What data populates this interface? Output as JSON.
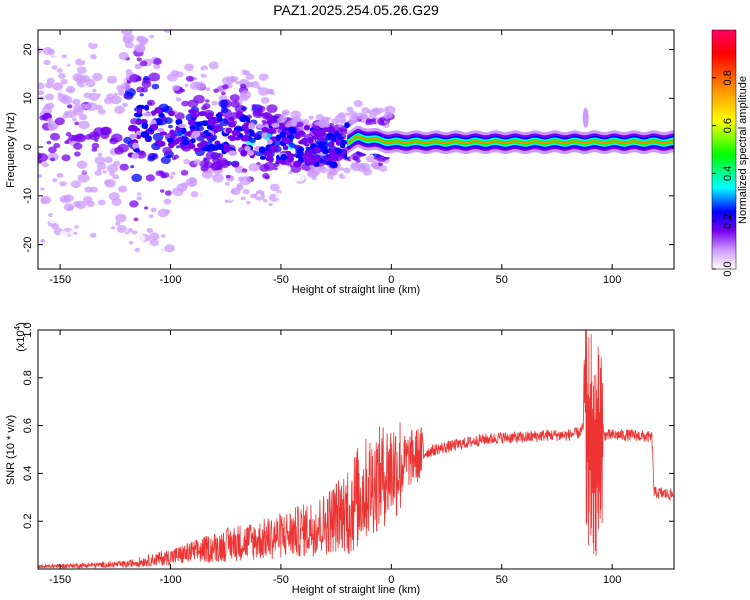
{
  "title": "PAZ1.2025.254.05.26.G29",
  "chart_data": [
    {
      "type": "heatmap",
      "title": "PAZ1.2025.254.05.26.G29",
      "xlabel": "Height of straight line (km)",
      "ylabel": "Frequency (Hz)",
      "xlim": [
        -160,
        128
      ],
      "ylim": [
        -25,
        24
      ],
      "xticks": [
        -150,
        -100,
        -50,
        0,
        50,
        100
      ],
      "yticks": [
        -20,
        -10,
        0,
        10,
        20
      ],
      "colorbar": {
        "label": "Normalized spectral amplitude",
        "range": [
          0,
          1
        ],
        "ticks": [
          0.0,
          0.2,
          0.4,
          0.6,
          0.8
        ],
        "colors": [
          "#ffffff",
          "#cc99ff",
          "#7700ee",
          "#0000ff",
          "#00ffff",
          "#00ff00",
          "#ffff00",
          "#ff8800",
          "#ff0000",
          "#ff0066"
        ]
      },
      "ridge": [
        {
          "x": -115,
          "f": 5
        },
        {
          "x": -100,
          "f": 4
        },
        {
          "x": -80,
          "f": 3
        },
        {
          "x": -60,
          "f": 2
        },
        {
          "x": -40,
          "f": 0
        },
        {
          "x": -25,
          "f": 0
        },
        {
          "x": -15,
          "f": 2
        },
        {
          "x": 0,
          "f": 1
        },
        {
          "x": 50,
          "f": 1
        },
        {
          "x": 87,
          "f": 1
        },
        {
          "x": 128,
          "f": 1
        }
      ]
    },
    {
      "type": "line",
      "xlabel": "Height of straight line (km)",
      "ylabel": "SNR (10 * v/v)",
      "yscale_label": "(x10",
      "yscale_exp": "4",
      "yscale_close": ")",
      "xlim": [
        -160,
        128
      ],
      "ylim": [
        0,
        1.0
      ],
      "xticks": [
        -150,
        -100,
        -50,
        0,
        50,
        100
      ],
      "yticks": [
        0.2,
        0.4,
        0.6,
        0.8,
        1.0
      ],
      "color": "#ee3333",
      "series": [
        {
          "name": "SNR",
          "x": [
            -160,
            -140,
            -120,
            -100,
            -90,
            -80,
            -70,
            -60,
            -50,
            -40,
            -30,
            -25,
            -20,
            -15,
            -10,
            -5,
            0,
            5,
            10,
            20,
            30,
            40,
            50,
            60,
            70,
            80,
            85,
            88,
            90,
            92,
            95,
            100,
            110,
            118,
            119,
            128
          ],
          "y": [
            0.01,
            0.015,
            0.02,
            0.05,
            0.07,
            0.09,
            0.11,
            0.12,
            0.14,
            0.16,
            0.19,
            0.22,
            0.25,
            0.3,
            0.35,
            0.38,
            0.42,
            0.44,
            0.47,
            0.5,
            0.52,
            0.54,
            0.55,
            0.55,
            0.56,
            0.56,
            0.57,
            0.6,
            0.5,
            0.45,
            0.56,
            0.56,
            0.56,
            0.55,
            0.32,
            0.31
          ]
        }
      ]
    }
  ]
}
